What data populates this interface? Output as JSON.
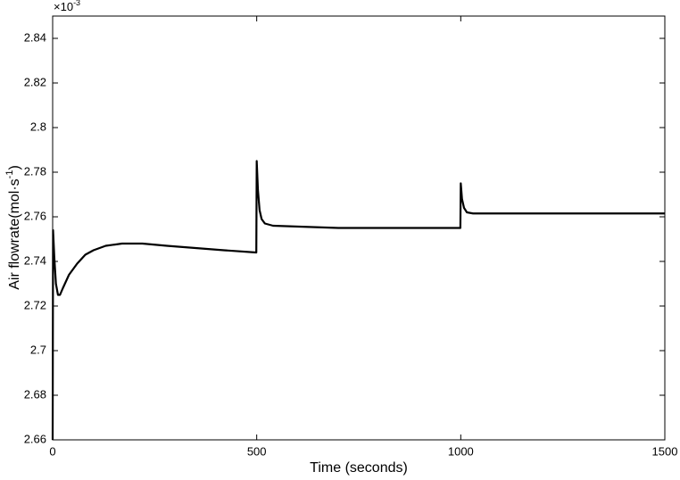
{
  "chart_data": {
    "type": "line",
    "ylabel": "Air flowrate(mol·s",
    "ylabel_sup": "-1",
    "ylabel_end": ")",
    "xlabel": "Time (seconds)",
    "y_multiplier": "×10",
    "y_multiplier_exp": "-3",
    "x": [
      0,
      1,
      4,
      8,
      13,
      18,
      25,
      40,
      60,
      80,
      100,
      130,
      170,
      220,
      280,
      350,
      420,
      499,
      500,
      503,
      507,
      512,
      520,
      540,
      700,
      999,
      1000,
      1003,
      1008,
      1015,
      1030,
      1500
    ],
    "values": [
      2.66,
      2.754,
      2.742,
      2.73,
      2.725,
      2.725,
      2.728,
      2.734,
      2.739,
      2.743,
      2.745,
      2.747,
      2.748,
      2.748,
      2.747,
      2.746,
      2.745,
      2.744,
      2.785,
      2.772,
      2.763,
      2.759,
      2.757,
      2.756,
      2.755,
      2.755,
      2.775,
      2.768,
      2.764,
      2.762,
      2.7615,
      2.7615
    ],
    "color": "#000000",
    "xlim": [
      0,
      1500
    ],
    "xticks": [
      0,
      500,
      1000,
      1500
    ],
    "ylim": [
      2.66,
      2.85
    ],
    "yticks": [
      2.66,
      2.68,
      2.7,
      2.72,
      2.74,
      2.76,
      2.78,
      2.8,
      2.82,
      2.84
    ],
    "grid": false
  }
}
